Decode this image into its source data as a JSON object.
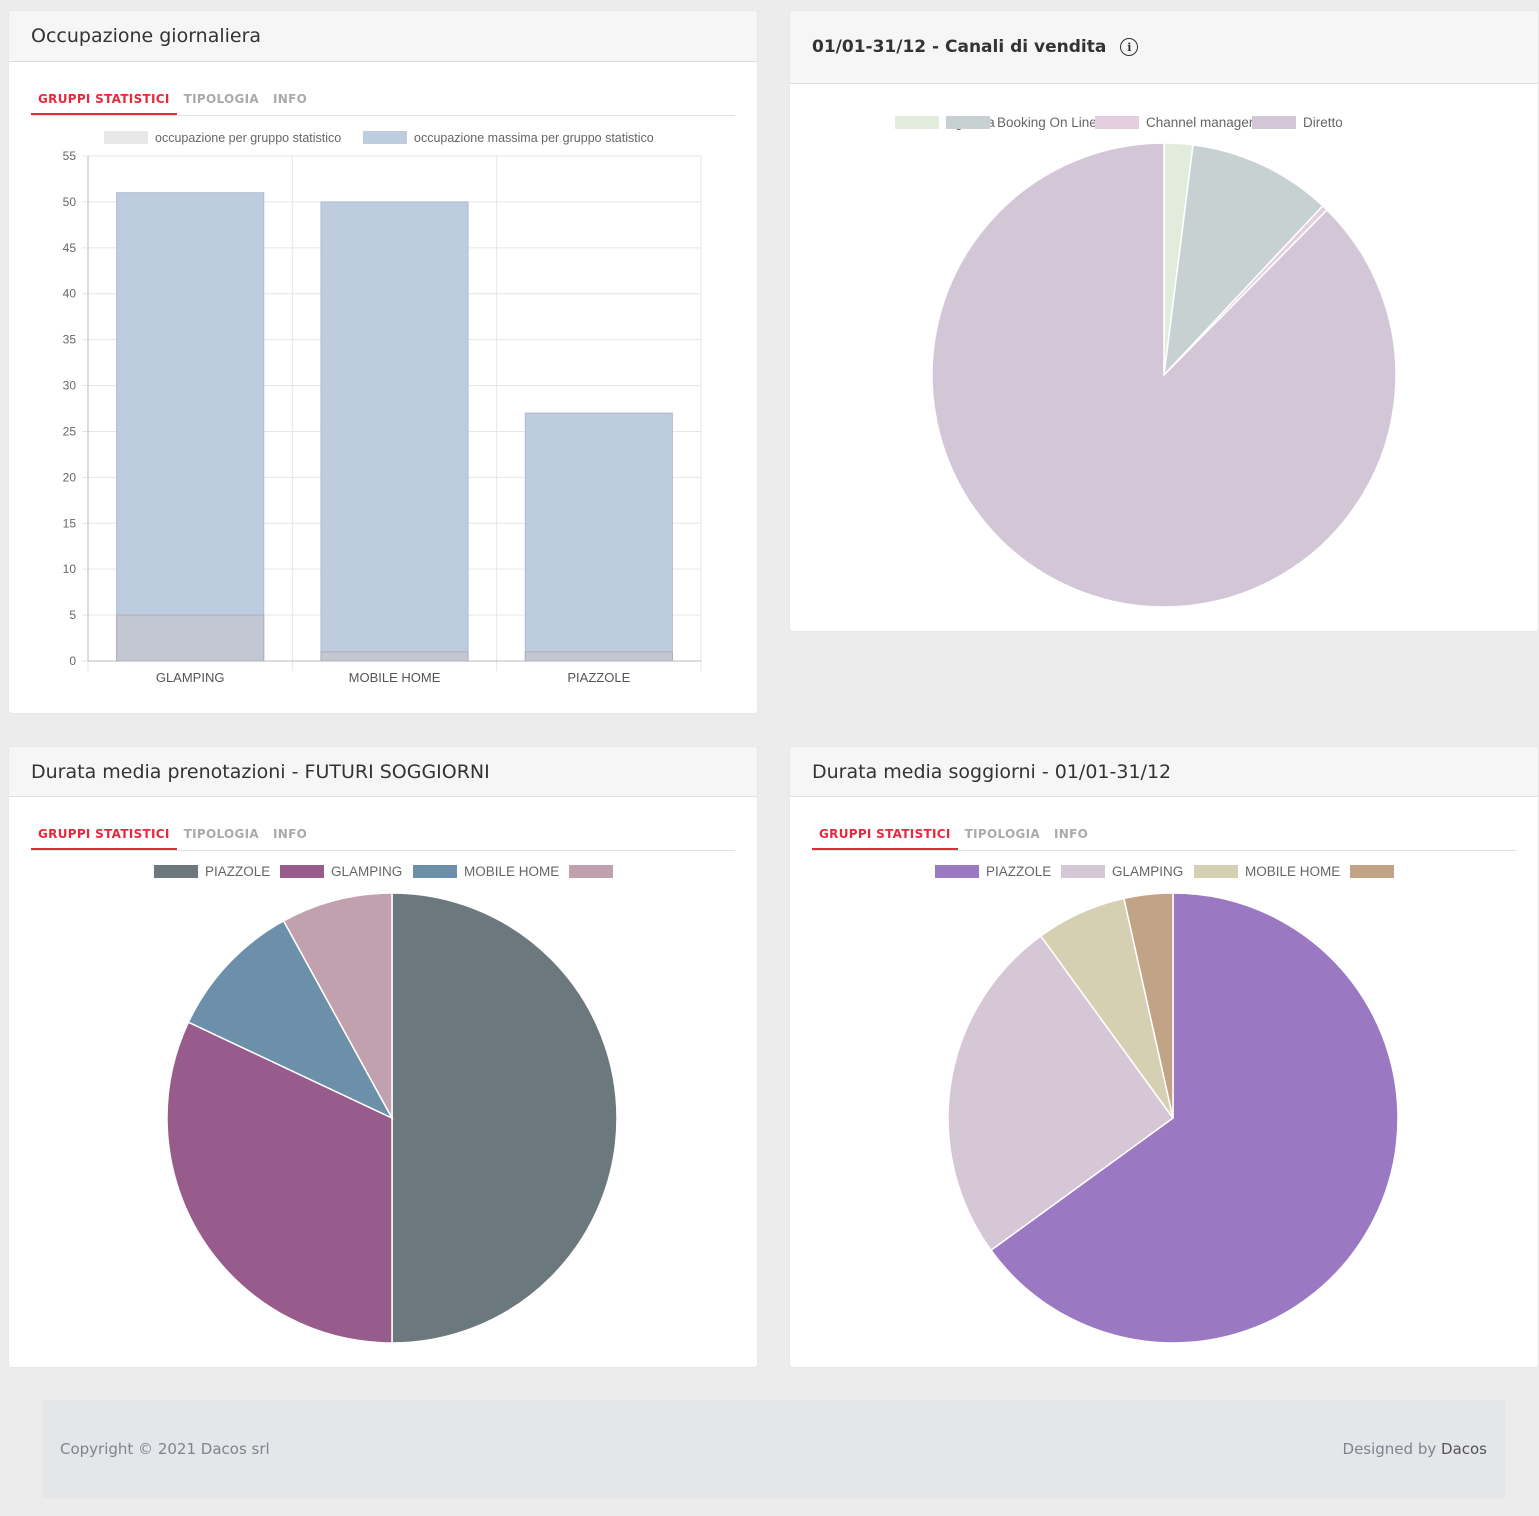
{
  "tabs": [
    "GRUPPI STATISTICI",
    "TIPOLOGIA",
    "INFO"
  ],
  "occupancy": {
    "title": "Occupazione giornaliera",
    "chart_data": {
      "type": "bar",
      "categories": [
        "GLAMPING",
        "MOBILE HOME",
        "PIAZZOLE"
      ],
      "series": [
        {
          "name": "occupazione per gruppo statistico",
          "values": [
            5,
            1,
            1
          ],
          "color": "#c3c7d1"
        },
        {
          "name": "occupazione massima per gruppo statistico",
          "values": [
            51,
            50,
            27
          ],
          "color": "#becce0"
        }
      ],
      "ylim": [
        0,
        55
      ],
      "yticks": [
        0,
        5,
        10,
        15,
        20,
        25,
        30,
        35,
        40,
        45,
        50,
        55
      ],
      "legend_colors": [
        "#e7e7e7",
        "#becce0"
      ]
    }
  },
  "channels": {
    "title": "01/01-31/12 - Canali di vendita",
    "info_icon": "info-icon",
    "chart_data": {
      "type": "pie",
      "labels": [
        "Agenzia",
        "Booking On Line",
        "Channel manager",
        "Diretto"
      ],
      "values": [
        2,
        10,
        0.4,
        87.6
      ],
      "colors": [
        "#e2ecdc",
        "#c8d1d1",
        "#e3cfe0",
        "#d3c6d6"
      ]
    }
  },
  "future_stays": {
    "title": "Durata media prenotazioni - FUTURI SOGGIORNI",
    "chart_data": {
      "type": "pie",
      "labels": [
        "PIAZZOLE",
        "GLAMPING",
        "MOBILE HOME",
        ""
      ],
      "values": [
        50,
        32,
        10,
        8
      ],
      "colors": [
        "#6b787e",
        "#975c8c",
        "#6d90aa",
        "#c2a1ae"
      ]
    }
  },
  "avg_stays": {
    "title": "Durata media soggiorni - 01/01-31/12",
    "chart_data": {
      "type": "pie",
      "labels": [
        "PIAZZOLE",
        "GLAMPING",
        "MOBILE HOME",
        ""
      ],
      "values": [
        65,
        25,
        6.5,
        3.5
      ],
      "colors": [
        "#9a78c2",
        "#d6c7d7",
        "#d5d0b2",
        "#c3a385"
      ]
    }
  },
  "footer": {
    "copyright": "Copyright © 2021 Dacos srl",
    "designed_by": "Designed by",
    "brand": "Dacos"
  }
}
